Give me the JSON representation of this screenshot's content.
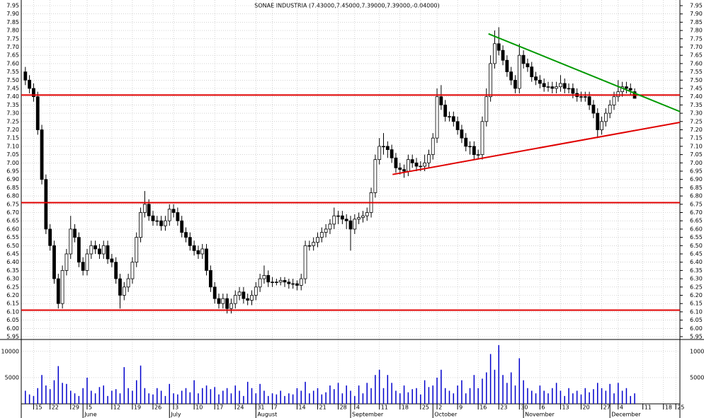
{
  "chart_data": {
    "type": "candlestick",
    "title": "SONAE INDUSTRIA (7.43000,7.45000,7.39000,7.39000,-0.04000)",
    "grid": true,
    "xlim": [
      -1,
      159
    ],
    "ylim": [
      5.95,
      7.95
    ],
    "yticks": [
      7.95,
      {
        "value": 7.9,
        "label": "7.90"
      },
      7.85,
      {
        "value": 7.8,
        "label": "7.80"
      },
      7.75,
      {
        "value": 7.7,
        "label": "7.70"
      },
      7.65,
      {
        "value": 7.6,
        "label": "7.60"
      },
      7.55,
      {
        "value": 7.5,
        "label": "7.50"
      },
      7.45,
      {
        "value": 7.4,
        "label": "7.40"
      },
      7.35,
      {
        "value": 7.3,
        "label": "7.30"
      },
      7.25,
      {
        "value": 7.2,
        "label": "7.20"
      },
      7.15,
      {
        "value": 7.1,
        "label": "7.10"
      },
      7.05,
      {
        "value": 7.0,
        "label": "7.00"
      },
      6.95,
      {
        "value": 6.9,
        "label": "6.90"
      },
      6.85,
      {
        "value": 6.8,
        "label": "6.80"
      },
      6.75,
      {
        "value": 6.7,
        "label": "6.70"
      },
      6.65,
      {
        "value": 6.6,
        "label": "6.60"
      },
      6.55,
      {
        "value": 6.5,
        "label": "6.50"
      },
      6.45,
      {
        "value": 6.4,
        "label": "6.40"
      },
      6.35,
      {
        "value": 6.3,
        "label": "6.30"
      },
      6.25,
      {
        "value": 6.2,
        "label": "6.20"
      },
      6.15,
      {
        "value": 6.1,
        "label": "6.10"
      },
      6.05,
      {
        "value": 6.0,
        "label": "6.00"
      },
      5.95
    ],
    "xticks": [
      {
        "value": 2,
        "label": "15"
      },
      {
        "value": 6,
        "label": "22"
      },
      {
        "value": 11,
        "label": "29"
      },
      {
        "value": 15,
        "label": "5"
      },
      {
        "value": 21,
        "label": "12"
      },
      {
        "value": 26,
        "label": "19"
      },
      {
        "value": 31,
        "label": "26"
      },
      {
        "value": 36,
        "label": "3"
      },
      {
        "value": 41,
        "label": "10"
      },
      {
        "value": 46,
        "label": "17"
      },
      {
        "value": 51,
        "label": "24"
      },
      {
        "value": 56,
        "label": "31"
      },
      {
        "value": 60,
        "label": "7"
      },
      {
        "value": 66,
        "label": "14"
      },
      {
        "value": 71,
        "label": "21"
      },
      {
        "value": 76,
        "label": "28"
      },
      {
        "value": 80,
        "label": "4"
      },
      {
        "value": 86,
        "label": "11"
      },
      {
        "value": 91,
        "label": "18"
      },
      {
        "value": 96,
        "label": "25"
      },
      {
        "value": 100,
        "label": "2"
      },
      {
        "value": 105,
        "label": "9"
      },
      {
        "value": 110,
        "label": "16"
      },
      {
        "value": 115,
        "label": "23"
      },
      {
        "value": 120,
        "label": "30"
      },
      {
        "value": 125,
        "label": "6"
      },
      {
        "value": 130,
        "label": "13"
      },
      {
        "value": 135,
        "label": "20"
      },
      {
        "value": 140,
        "label": "27"
      },
      {
        "value": 144,
        "label": "4"
      },
      {
        "value": 150,
        "label": "11"
      },
      {
        "value": 155,
        "label": "18"
      },
      {
        "value": 158,
        "label": "25"
      }
    ],
    "month_labels": [
      {
        "value": 14,
        "label": "June"
      },
      {
        "value": 35,
        "label": "July"
      },
      {
        "value": 56,
        "label": "August"
      },
      {
        "value": 79,
        "label": "September"
      },
      {
        "value": 99,
        "label": "October"
      },
      {
        "value": 121,
        "label": "November"
      },
      {
        "value": 142,
        "label": "December"
      }
    ],
    "ohlc": [
      [
        7.55,
        7.58,
        7.47,
        7.5
      ],
      [
        7.5,
        7.53,
        7.42,
        7.45
      ],
      [
        7.45,
        7.48,
        7.37,
        7.4
      ],
      [
        7.4,
        7.43,
        7.17,
        7.2
      ],
      [
        7.2,
        7.23,
        6.87,
        6.9
      ],
      [
        6.9,
        6.93,
        6.57,
        6.6
      ],
      [
        6.6,
        6.63,
        6.47,
        6.5
      ],
      [
        6.5,
        6.53,
        6.27,
        6.3
      ],
      [
        6.3,
        6.33,
        6.12,
        6.15
      ],
      [
        6.15,
        6.38,
        6.12,
        6.35
      ],
      [
        6.35,
        6.48,
        6.32,
        6.45
      ],
      [
        6.45,
        6.68,
        6.42,
        6.6
      ],
      [
        6.6,
        6.63,
        6.52,
        6.55
      ],
      [
        6.55,
        6.58,
        6.37,
        6.4
      ],
      [
        6.4,
        6.43,
        6.32,
        6.35
      ],
      [
        6.35,
        6.48,
        6.32,
        6.45
      ],
      [
        6.45,
        6.53,
        6.42,
        6.5
      ],
      [
        6.5,
        6.53,
        6.45,
        6.48
      ],
      [
        6.48,
        6.51,
        6.42,
        6.45
      ],
      [
        6.45,
        6.53,
        6.42,
        6.5
      ],
      [
        6.5,
        6.53,
        6.39,
        6.42
      ],
      [
        6.42,
        6.45,
        6.37,
        6.4
      ],
      [
        6.4,
        6.43,
        6.27,
        6.3
      ],
      [
        6.3,
        6.33,
        6.12,
        6.2
      ],
      [
        6.2,
        6.28,
        6.17,
        6.25
      ],
      [
        6.25,
        6.33,
        6.22,
        6.3
      ],
      [
        6.3,
        6.43,
        6.27,
        6.4
      ],
      [
        6.4,
        6.58,
        6.37,
        6.55
      ],
      [
        6.55,
        6.73,
        6.52,
        6.7
      ],
      [
        6.7,
        6.83,
        6.67,
        6.75
      ],
      [
        6.75,
        6.78,
        6.65,
        6.68
      ],
      [
        6.68,
        6.71,
        6.62,
        6.65
      ],
      [
        6.65,
        6.68,
        6.62,
        6.65
      ],
      [
        6.65,
        6.68,
        6.59,
        6.62
      ],
      [
        6.62,
        6.68,
        6.59,
        6.65
      ],
      [
        6.65,
        6.75,
        6.62,
        6.72
      ],
      [
        6.72,
        6.75,
        6.67,
        6.7
      ],
      [
        6.7,
        6.73,
        6.62,
        6.65
      ],
      [
        6.65,
        6.68,
        6.55,
        6.58
      ],
      [
        6.58,
        6.61,
        6.52,
        6.55
      ],
      [
        6.55,
        6.58,
        6.47,
        6.5
      ],
      [
        6.5,
        6.53,
        6.44,
        6.47
      ],
      [
        6.47,
        6.5,
        6.42,
        6.45
      ],
      [
        6.45,
        6.51,
        6.42,
        6.48
      ],
      [
        6.48,
        6.51,
        6.32,
        6.35
      ],
      [
        6.35,
        6.38,
        6.22,
        6.25
      ],
      [
        6.25,
        6.28,
        6.15,
        6.18
      ],
      [
        6.18,
        6.21,
        6.12,
        6.15
      ],
      [
        6.15,
        6.21,
        6.12,
        6.18
      ],
      [
        6.18,
        6.21,
        6.09,
        6.12
      ],
      [
        6.12,
        6.18,
        6.09,
        6.15
      ],
      [
        6.15,
        6.23,
        6.12,
        6.2
      ],
      [
        6.2,
        6.25,
        6.17,
        6.22
      ],
      [
        6.22,
        6.25,
        6.15,
        6.18
      ],
      [
        6.18,
        6.21,
        6.14,
        6.17
      ],
      [
        6.17,
        6.23,
        6.14,
        6.2
      ],
      [
        6.2,
        6.28,
        6.17,
        6.25
      ],
      [
        6.25,
        6.33,
        6.22,
        6.3
      ],
      [
        6.3,
        6.38,
        6.27,
        6.32
      ],
      [
        6.32,
        6.35,
        6.25,
        6.28
      ],
      [
        6.28,
        6.31,
        6.25,
        6.28
      ],
      [
        6.28,
        6.3,
        6.26,
        6.28
      ],
      [
        6.28,
        6.31,
        6.26,
        6.29
      ],
      [
        6.29,
        6.31,
        6.25,
        6.28
      ],
      [
        6.28,
        6.3,
        6.24,
        6.27
      ],
      [
        6.27,
        6.3,
        6.24,
        6.27
      ],
      [
        6.27,
        6.29,
        6.23,
        6.26
      ],
      [
        6.26,
        6.33,
        6.23,
        6.3
      ],
      [
        6.3,
        6.53,
        6.27,
        6.5
      ],
      [
        6.5,
        6.53,
        6.47,
        6.5
      ],
      [
        6.5,
        6.55,
        6.47,
        6.52
      ],
      [
        6.52,
        6.58,
        6.49,
        6.55
      ],
      [
        6.55,
        6.61,
        6.52,
        6.58
      ],
      [
        6.58,
        6.63,
        6.55,
        6.6
      ],
      [
        6.6,
        6.66,
        6.57,
        6.63
      ],
      [
        6.63,
        6.73,
        6.6,
        6.68
      ],
      [
        6.68,
        6.71,
        6.63,
        6.68
      ],
      [
        6.68,
        6.71,
        6.63,
        6.66
      ],
      [
        6.66,
        6.69,
        6.6,
        6.65
      ],
      [
        6.65,
        6.68,
        6.47,
        6.6
      ],
      [
        6.6,
        6.69,
        6.57,
        6.66
      ],
      [
        6.66,
        6.7,
        6.63,
        6.67
      ],
      [
        6.67,
        6.71,
        6.64,
        6.68
      ],
      [
        6.68,
        6.73,
        6.65,
        6.7
      ],
      [
        6.7,
        6.85,
        6.67,
        6.82
      ],
      [
        6.82,
        7.05,
        6.79,
        7.02
      ],
      [
        7.02,
        7.15,
        6.99,
        7.1
      ],
      [
        7.1,
        7.18,
        7.05,
        7.1
      ],
      [
        7.1,
        7.13,
        7.03,
        7.08
      ],
      [
        7.08,
        7.11,
        7.0,
        7.03
      ],
      [
        7.03,
        7.06,
        6.94,
        6.97
      ],
      [
        6.97,
        7.0,
        6.93,
        6.96
      ],
      [
        6.96,
        6.99,
        6.91,
        6.95
      ],
      [
        6.95,
        7.05,
        6.92,
        7.02
      ],
      [
        7.02,
        7.05,
        6.97,
        7.0
      ],
      [
        7.0,
        7.03,
        6.95,
        6.98
      ],
      [
        6.98,
        7.01,
        6.95,
        6.98
      ],
      [
        6.98,
        7.05,
        6.95,
        7.0
      ],
      [
        7.0,
        7.08,
        6.97,
        7.05
      ],
      [
        7.05,
        7.18,
        7.02,
        7.15
      ],
      [
        7.15,
        7.45,
        7.12,
        7.4
      ],
      [
        7.4,
        7.47,
        7.32,
        7.35
      ],
      [
        7.35,
        7.38,
        7.25,
        7.28
      ],
      [
        7.28,
        7.31,
        7.25,
        7.28
      ],
      [
        7.28,
        7.31,
        7.22,
        7.25
      ],
      [
        7.25,
        7.28,
        7.17,
        7.2
      ],
      [
        7.2,
        7.23,
        7.12,
        7.15
      ],
      [
        7.15,
        7.18,
        7.07,
        7.1
      ],
      [
        7.1,
        7.13,
        7.05,
        7.1
      ],
      [
        7.1,
        7.13,
        7.02,
        7.05
      ],
      [
        7.05,
        7.08,
        7.02,
        7.05
      ],
      [
        7.05,
        7.28,
        7.02,
        7.25
      ],
      [
        7.25,
        7.45,
        7.22,
        7.4
      ],
      [
        7.4,
        7.65,
        7.37,
        7.6
      ],
      [
        7.6,
        7.8,
        7.57,
        7.72
      ],
      [
        7.72,
        7.82,
        7.65,
        7.68
      ],
      [
        7.68,
        7.71,
        7.59,
        7.62
      ],
      [
        7.62,
        7.65,
        7.52,
        7.55
      ],
      [
        7.55,
        7.58,
        7.47,
        7.5
      ],
      [
        7.5,
        7.53,
        7.42,
        7.45
      ],
      [
        7.45,
        7.72,
        7.42,
        7.65
      ],
      [
        7.65,
        7.68,
        7.57,
        7.6
      ],
      [
        7.6,
        7.63,
        7.55,
        7.58
      ],
      [
        7.58,
        7.61,
        7.49,
        7.52
      ],
      [
        7.52,
        7.55,
        7.47,
        7.5
      ],
      [
        7.5,
        7.53,
        7.45,
        7.48
      ],
      [
        7.48,
        7.51,
        7.43,
        7.46
      ],
      [
        7.46,
        7.49,
        7.43,
        7.46
      ],
      [
        7.46,
        7.49,
        7.42,
        7.45
      ],
      [
        7.45,
        7.49,
        7.42,
        7.46
      ],
      [
        7.46,
        7.53,
        7.43,
        7.48
      ],
      [
        7.48,
        7.51,
        7.42,
        7.45
      ],
      [
        7.45,
        7.48,
        7.42,
        7.45
      ],
      [
        7.45,
        7.48,
        7.39,
        7.42
      ],
      [
        7.42,
        7.45,
        7.37,
        7.4
      ],
      [
        7.4,
        7.43,
        7.37,
        7.4
      ],
      [
        7.4,
        7.43,
        7.37,
        7.4
      ],
      [
        7.4,
        7.43,
        7.32,
        7.35
      ],
      [
        7.35,
        7.38,
        7.27,
        7.3
      ],
      [
        7.3,
        7.33,
        7.15,
        7.2
      ],
      [
        7.2,
        7.28,
        7.17,
        7.25
      ],
      [
        7.25,
        7.33,
        7.22,
        7.3
      ],
      [
        7.3,
        7.38,
        7.27,
        7.35
      ],
      [
        7.35,
        7.43,
        7.32,
        7.4
      ],
      [
        7.4,
        7.5,
        7.37,
        7.43
      ],
      [
        7.43,
        7.49,
        7.4,
        7.46
      ],
      [
        7.46,
        7.49,
        7.42,
        7.45
      ],
      [
        7.45,
        7.48,
        7.41,
        7.44
      ],
      [
        7.43,
        7.45,
        7.39,
        7.39
      ]
    ],
    "lines": [
      {
        "color": "#e00000",
        "x": [
          -1,
          159
        ],
        "y": [
          7.41,
          7.41
        ]
      },
      {
        "color": "#e00000",
        "x": [
          -1,
          159
        ],
        "y": [
          6.76,
          6.76
        ]
      },
      {
        "color": "#e00000",
        "x": [
          -1,
          159
        ],
        "y": [
          6.11,
          6.11
        ]
      },
      {
        "color": "#009900",
        "x": [
          112.5,
          159
        ],
        "y": [
          7.78,
          7.31
        ]
      },
      {
        "color": "#e00000",
        "x": [
          89.2,
          159
        ],
        "y": [
          6.93,
          7.245
        ]
      }
    ],
    "volume": {
      "color": "#0000cc",
      "ylim": [
        0,
        12000
      ],
      "yticks": [
        10000,
        5000
      ],
      "values": [
        2500,
        1800,
        1500,
        3000,
        5500,
        3500,
        2800,
        4500,
        7200,
        4000,
        3800,
        2500,
        2000,
        1500,
        3000,
        5000,
        2500,
        2000,
        3200,
        3500,
        1500,
        2500,
        2800,
        2000,
        7000,
        3000,
        2500,
        4500,
        7300,
        3000,
        2000,
        1800,
        3000,
        2500,
        1500,
        3800,
        2000,
        1800,
        2500,
        3000,
        2200,
        4500,
        2000,
        3000,
        3500,
        2800,
        3200,
        1800,
        2500,
        3000,
        2000,
        3500,
        2500,
        1500,
        4200,
        3000,
        2000,
        3800,
        2500,
        1500,
        2000,
        1800,
        2500,
        1500,
        2000,
        1800,
        3000,
        2500,
        4200,
        2000,
        2500,
        3000,
        1800,
        2200,
        3500,
        2800,
        4000,
        2000,
        3500,
        2500,
        1500,
        3500,
        2000,
        4000,
        3000,
        5500,
        6500,
        3000,
        5500,
        4000,
        2500,
        2000,
        3500,
        2200,
        2800,
        3000,
        1800,
        4500,
        3200,
        3500,
        5000,
        6500,
        3000,
        2500,
        2000,
        3500,
        4500,
        2000,
        3000,
        5500,
        3000,
        4800,
        6000,
        9500,
        6500,
        11200,
        5500,
        4000,
        6000,
        3500,
        8700,
        4500,
        3000,
        2500,
        2000,
        3500,
        2500,
        2000,
        3000,
        4000,
        2500,
        1500,
        3000,
        2000,
        2500,
        1800,
        3000,
        2200,
        2800,
        4000,
        3000,
        2500,
        3800,
        2000,
        4000,
        2500,
        3000,
        1500,
        2000
      ]
    }
  }
}
